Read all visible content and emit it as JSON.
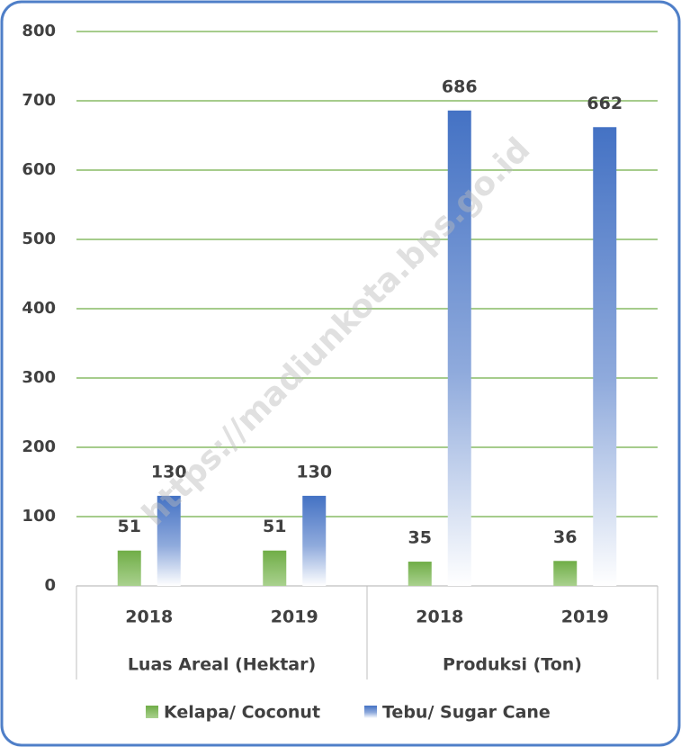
{
  "chart_data": {
    "type": "bar",
    "categories": [
      "2018",
      "2019",
      "2018",
      "2019"
    ],
    "groups": [
      "Luas Areal (Hektar)",
      "Produksi (Ton)"
    ],
    "series": [
      {
        "name": "Kelapa/ Coconut",
        "color": "#70ad47",
        "values": [
          51,
          51,
          35,
          36
        ]
      },
      {
        "name": "Tebu/ Sugar Cane",
        "color": "#4472c4",
        "values": [
          130,
          130,
          686,
          662
        ]
      }
    ],
    "ylim": [
      0,
      800
    ],
    "yticks": [
      0,
      100,
      200,
      300,
      400,
      500,
      600,
      700,
      800
    ],
    "grid": true,
    "legend": "bottom",
    "watermark": "https://madiunkota.bps.go.id"
  }
}
